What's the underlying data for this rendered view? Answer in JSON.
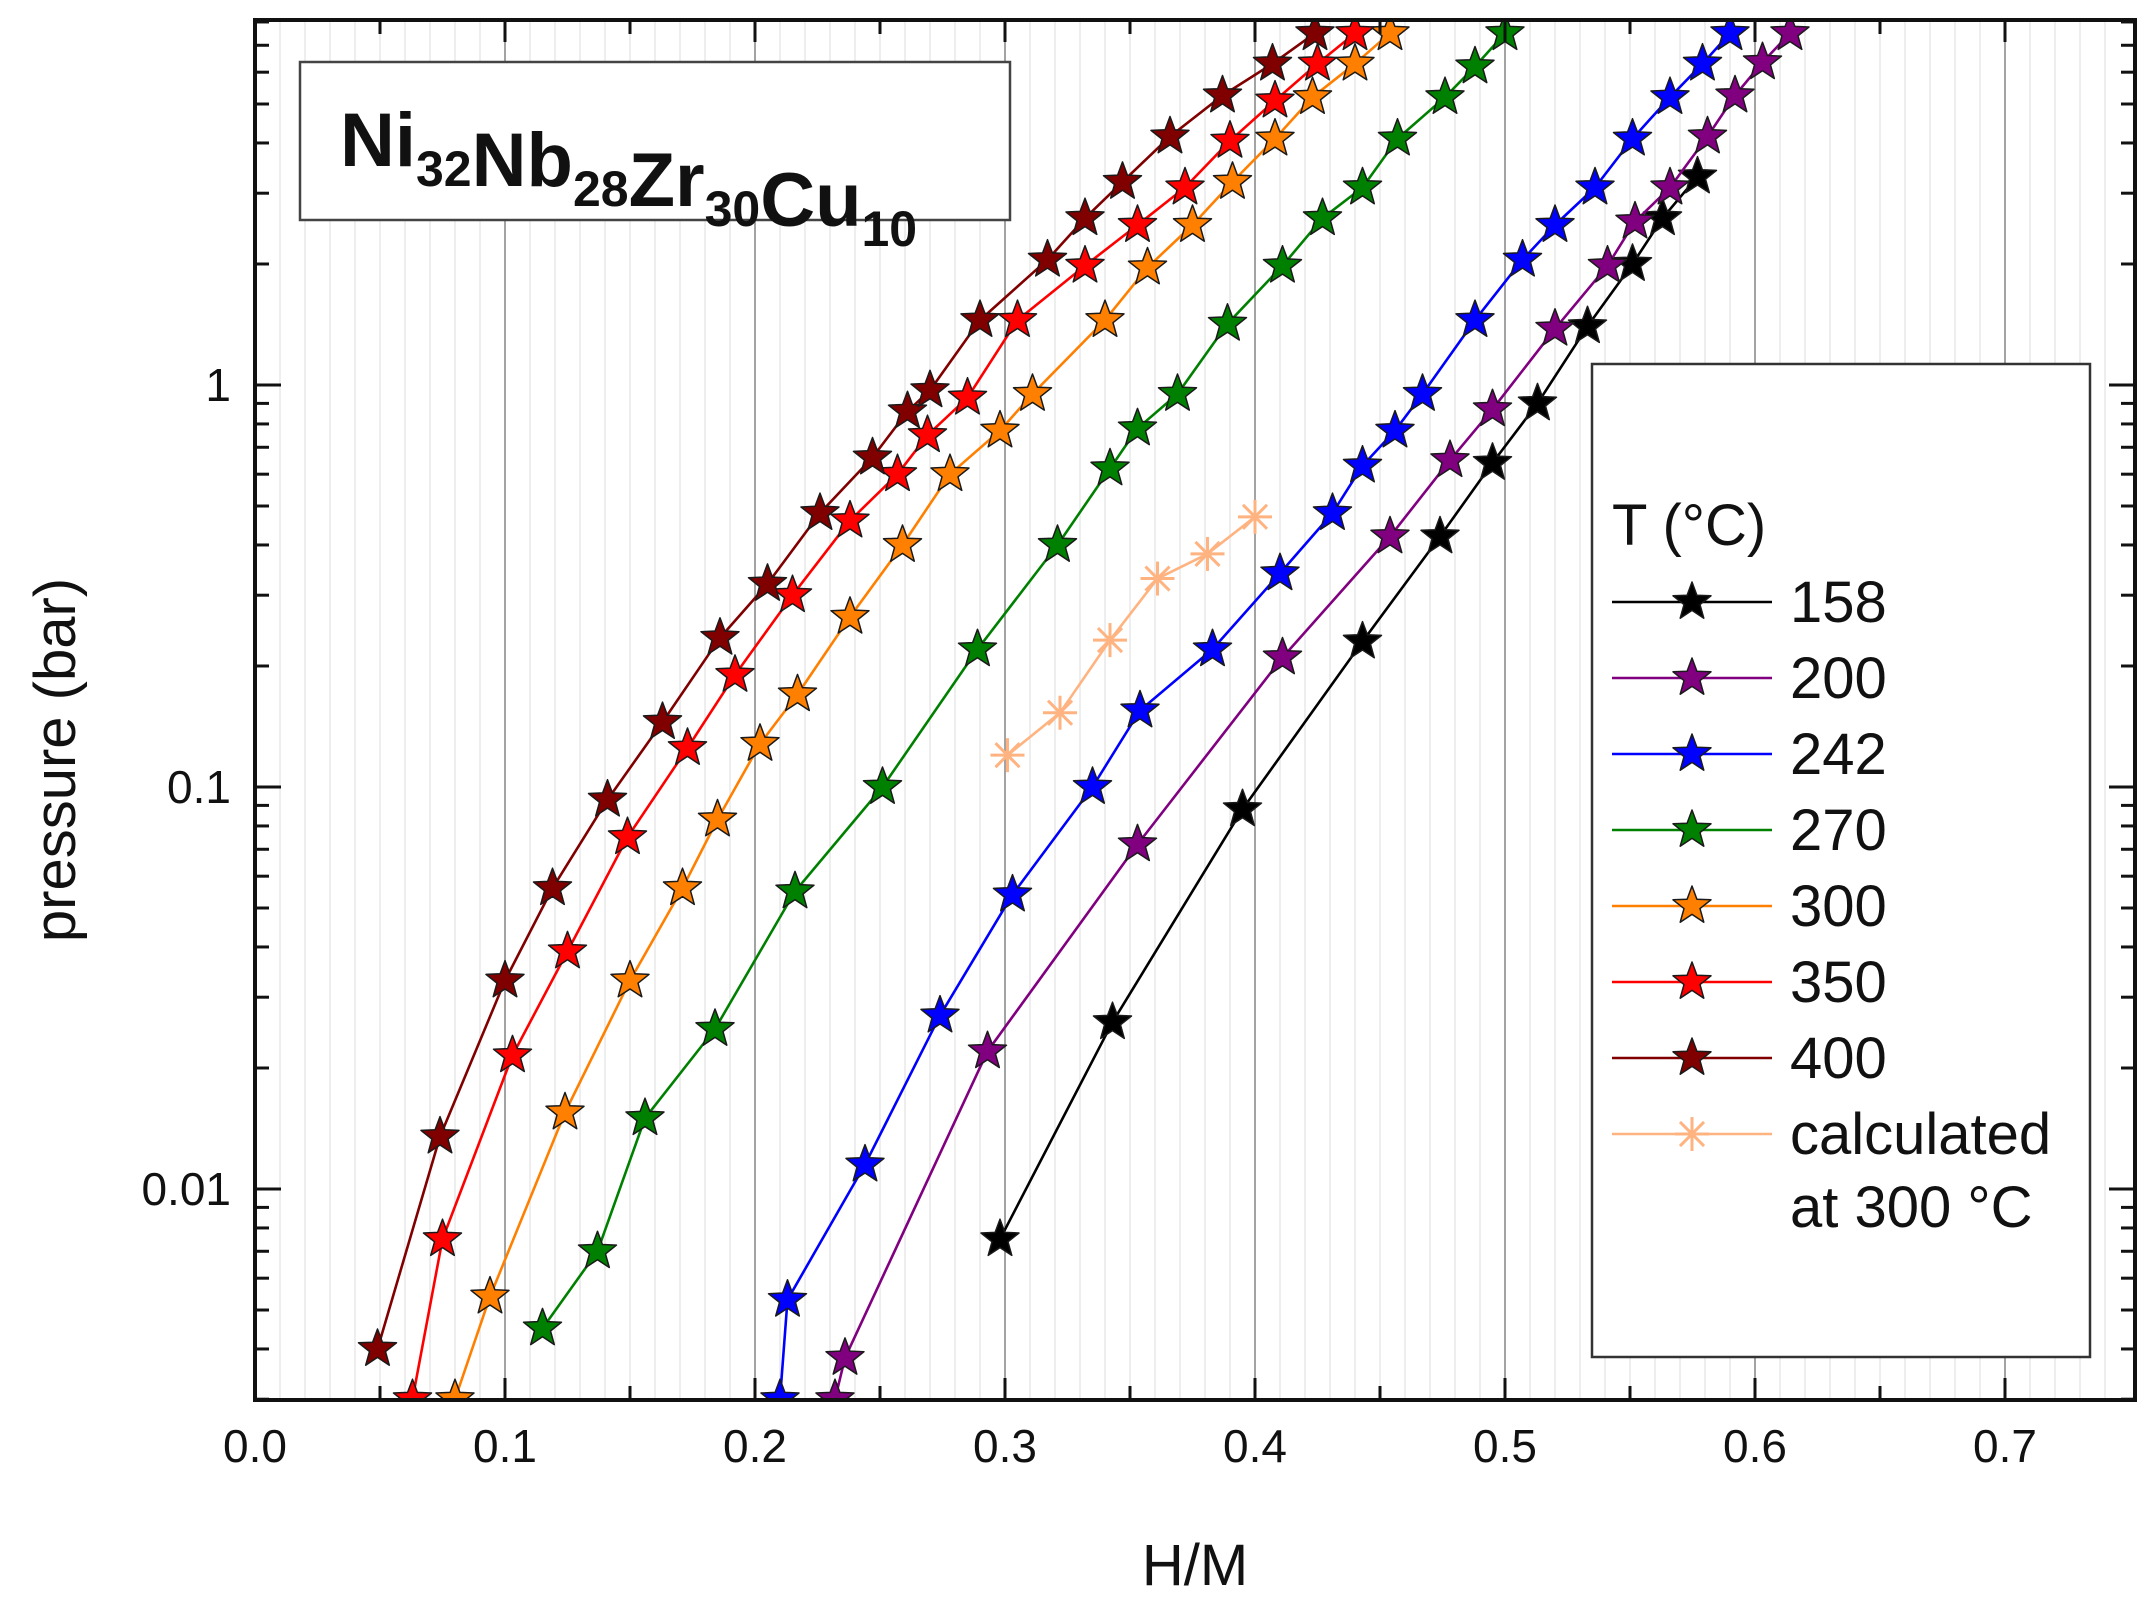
{
  "chart_data": {
    "type": "line",
    "title": "Ni32Nb28Zr30Cu10",
    "composition": [
      {
        "element": "Ni",
        "sub": "32"
      },
      {
        "element": "Nb",
        "sub": "28"
      },
      {
        "element": "Zr",
        "sub": "30"
      },
      {
        "element": "Cu",
        "sub": "10"
      }
    ],
    "xlabel": "H/M",
    "ylabel": "pressure (bar)",
    "xlim": [
      0.0,
      0.75
    ],
    "ylim": [
      0.003,
      8.5
    ],
    "yscale": "log",
    "xticks": [
      {
        "value": 0.0,
        "label": "0.0"
      },
      {
        "value": 0.1,
        "label": "0.1"
      },
      {
        "value": 0.2,
        "label": "0.2"
      },
      {
        "value": 0.3,
        "label": "0.3"
      },
      {
        "value": 0.4,
        "label": "0.4"
      },
      {
        "value": 0.5,
        "label": "0.5"
      },
      {
        "value": 0.6,
        "label": "0.6"
      },
      {
        "value": 0.7,
        "label": "0.7"
      }
    ],
    "yticks": [
      {
        "value": 0.01,
        "label": "0.01"
      },
      {
        "value": 0.1,
        "label": "0.1"
      },
      {
        "value": 1,
        "label": "1"
      }
    ],
    "grid": true,
    "legend_title": "T (°C)",
    "legend_position": "right",
    "series": [
      {
        "name": "158",
        "color": "#000000",
        "marker": "star",
        "x": [
          0.298,
          0.343,
          0.395,
          0.443,
          0.474,
          0.495,
          0.513,
          0.533,
          0.551,
          0.563,
          0.577
        ],
        "y": [
          0.0075,
          0.026,
          0.088,
          0.23,
          0.42,
          0.64,
          0.9,
          1.4,
          2.0,
          2.6,
          3.3
        ]
      },
      {
        "name": "200",
        "color": "#800080",
        "marker": "star",
        "x": [
          0.232,
          0.236,
          0.293,
          0.353,
          0.411,
          0.454,
          0.478,
          0.495,
          0.52,
          0.541,
          0.552,
          0.566,
          0.581,
          0.592,
          0.603,
          0.614
        ],
        "y": [
          0.003,
          0.0038,
          0.022,
          0.072,
          0.21,
          0.42,
          0.65,
          0.87,
          1.38,
          1.98,
          2.55,
          3.1,
          4.15,
          5.25,
          6.35,
          7.5
        ]
      },
      {
        "name": "242",
        "color": "#0000ff",
        "marker": "star",
        "x": [
          0.21,
          0.213,
          0.244,
          0.274,
          0.303,
          0.335,
          0.354,
          0.383,
          0.41,
          0.431,
          0.443,
          0.456,
          0.467,
          0.488,
          0.507,
          0.52,
          0.536,
          0.551,
          0.566,
          0.579,
          0.59
        ],
        "y": [
          0.003,
          0.0053,
          0.0115,
          0.027,
          0.054,
          0.1,
          0.155,
          0.22,
          0.34,
          0.48,
          0.63,
          0.77,
          0.95,
          1.45,
          2.05,
          2.5,
          3.1,
          4.1,
          5.2,
          6.3,
          7.5
        ]
      },
      {
        "name": "270",
        "color": "#008000",
        "marker": "star",
        "x": [
          0.115,
          0.137,
          0.156,
          0.184,
          0.216,
          0.251,
          0.289,
          0.321,
          0.342,
          0.353,
          0.369,
          0.389,
          0.411,
          0.427,
          0.443,
          0.457,
          0.476,
          0.488,
          0.5
        ],
        "y": [
          0.0045,
          0.007,
          0.015,
          0.025,
          0.055,
          0.1,
          0.22,
          0.4,
          0.62,
          0.78,
          0.95,
          1.42,
          1.98,
          2.6,
          3.1,
          4.1,
          5.2,
          6.2,
          7.5
        ]
      },
      {
        "name": "300",
        "color": "#ff8000",
        "marker": "star",
        "x": [
          0.08,
          0.094,
          0.124,
          0.15,
          0.171,
          0.185,
          0.202,
          0.217,
          0.238,
          0.259,
          0.278,
          0.298,
          0.311,
          0.34,
          0.357,
          0.375,
          0.391,
          0.408,
          0.423,
          0.44,
          0.454
        ],
        "y": [
          0.003,
          0.0054,
          0.0155,
          0.033,
          0.056,
          0.083,
          0.128,
          0.17,
          0.265,
          0.4,
          0.6,
          0.77,
          0.95,
          1.45,
          1.96,
          2.5,
          3.2,
          4.1,
          5.2,
          6.3,
          7.5
        ]
      },
      {
        "name": "350",
        "color": "#ff0000",
        "marker": "star",
        "x": [
          0.063,
          0.075,
          0.103,
          0.125,
          0.149,
          0.173,
          0.192,
          0.215,
          0.238,
          0.257,
          0.269,
          0.285,
          0.305,
          0.332,
          0.353,
          0.372,
          0.39,
          0.408,
          0.425,
          0.44
        ],
        "y": [
          0.003,
          0.0075,
          0.0215,
          0.039,
          0.075,
          0.125,
          0.19,
          0.3,
          0.46,
          0.6,
          0.75,
          0.93,
          1.45,
          1.98,
          2.5,
          3.1,
          4.05,
          5.1,
          6.3,
          7.5
        ]
      },
      {
        "name": "400",
        "color": "#800000",
        "marker": "star",
        "x": [
          0.049,
          0.074,
          0.1,
          0.119,
          0.141,
          0.163,
          0.186,
          0.205,
          0.226,
          0.247,
          0.261,
          0.27,
          0.29,
          0.317,
          0.332,
          0.347,
          0.366,
          0.387,
          0.407,
          0.424
        ],
        "y": [
          0.004,
          0.0135,
          0.033,
          0.056,
          0.093,
          0.145,
          0.235,
          0.32,
          0.48,
          0.66,
          0.86,
          0.97,
          1.45,
          2.05,
          2.6,
          3.2,
          4.15,
          5.25,
          6.3,
          7.5
        ]
      },
      {
        "name": "calculated at 300 °C",
        "name_lines": [
          "calculated",
          "at 300 °C"
        ],
        "color": "#ffb380",
        "marker": "asterisk",
        "x": [
          0.301,
          0.322,
          0.342,
          0.361,
          0.381,
          0.4
        ],
        "y": [
          0.12,
          0.153,
          0.232,
          0.33,
          0.38,
          0.47
        ]
      }
    ]
  }
}
